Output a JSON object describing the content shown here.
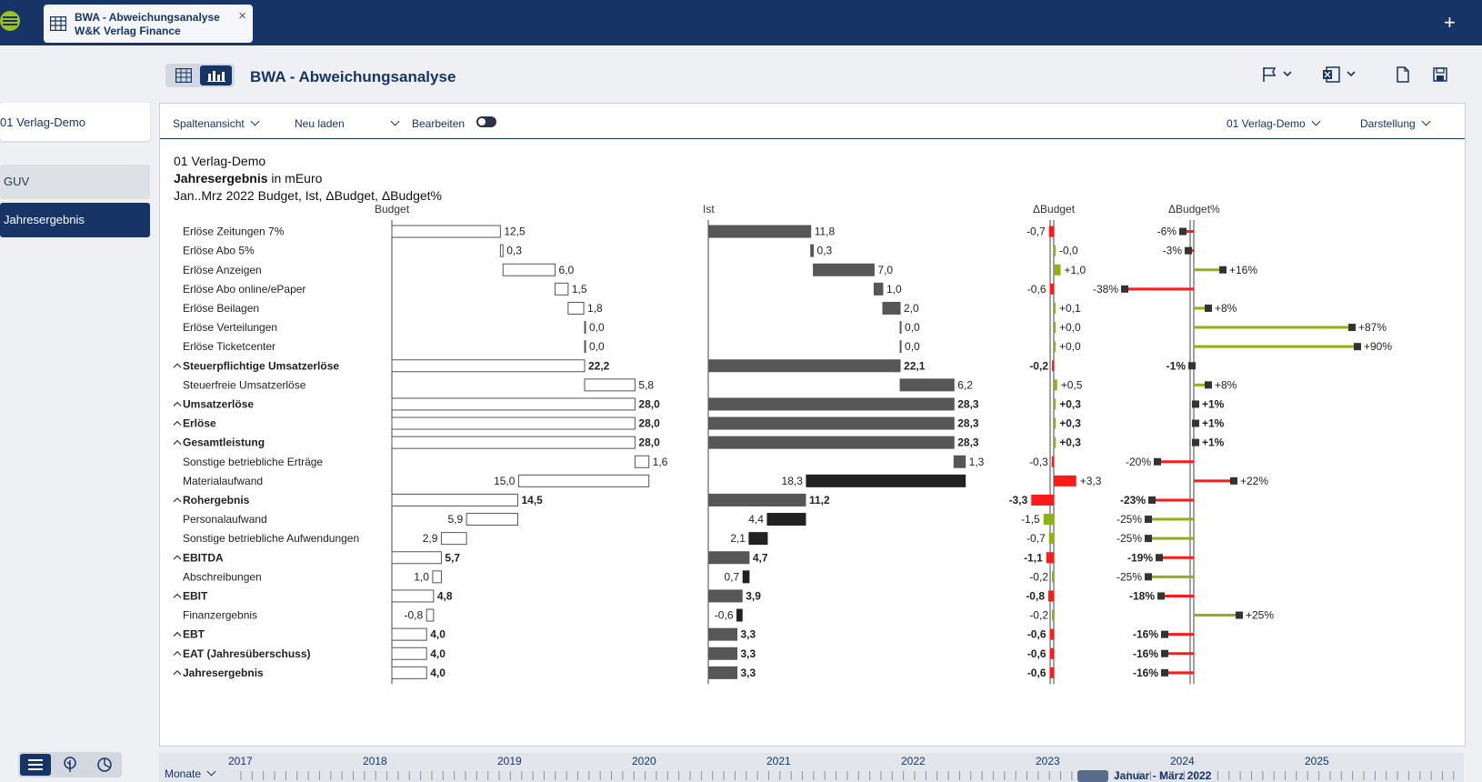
{
  "topbar": {
    "tab_line1": "BWA - Abweichungsanalyse",
    "tab_line2": "W&K Verlag Finance",
    "close_label": "×",
    "plus_label": "+"
  },
  "page": {
    "title": "BWA - Abweichungsanalyse"
  },
  "left": {
    "company": "01 Verlag-Demo",
    "nav": [
      {
        "label": "GUV"
      },
      {
        "label": "Jahresergebnis"
      }
    ]
  },
  "toolbar": {
    "columns_view": "Spaltenansicht",
    "reload": "Neu laden",
    "edit": "Bearbeiten",
    "company_select": "01 Verlag-Demo",
    "display": "Darstellung"
  },
  "report": {
    "company": "01 Verlag-Demo",
    "title_bold": "Jahresergebnis",
    "title_unit": " in mEuro",
    "subtitle": "Jan..Mrz 2022 Budget, Ist, ΔBudget, ΔBudget%"
  },
  "colors": {
    "navy": "#163566",
    "green": "#8db312",
    "red": "#ff1a1a",
    "ist_gray": "#575757",
    "ist_dark": "#222222",
    "marker": "#333333"
  },
  "chart_data": {
    "type": "bar",
    "columns": [
      "Budget",
      "Ist",
      "ΔBudget",
      "ΔBudget%"
    ],
    "rows": [
      {
        "label": "Erlöse Zeitungen 7%",
        "bold": false,
        "caret": false,
        "budget": 12.5,
        "ist": 11.8,
        "budget_text": "12,5",
        "ist_text": "11,8",
        "dabs": -0.7,
        "dabs_text": "-0,7",
        "dpct": -6,
        "dpct_text": "-6%",
        "bar_type": "delta",
        "start_b": 0,
        "start_i": 0
      },
      {
        "label": "Erlöse Abo 5%",
        "bold": false,
        "caret": false,
        "budget": 0.3,
        "ist": 0.3,
        "budget_text": "0,3",
        "ist_text": "0,3",
        "dabs": 0,
        "dabs_text": "-0,0",
        "dpct": -3,
        "dpct_text": "-3%",
        "bar_type": "delta",
        "start_b": 12.5,
        "start_i": 11.8
      },
      {
        "label": "Erlöse Anzeigen",
        "bold": false,
        "caret": false,
        "budget": 6.0,
        "ist": 7.0,
        "budget_text": "6,0",
        "ist_text": "7,0",
        "dabs": 1.0,
        "dabs_text": "+1,0",
        "dpct": 16,
        "dpct_text": "+16%",
        "bar_type": "delta",
        "start_b": 12.8,
        "start_i": 12.1
      },
      {
        "label": "Erlöse Abo online/ePaper",
        "bold": false,
        "caret": false,
        "budget": 1.5,
        "ist": 1.0,
        "budget_text": "1,5",
        "ist_text": "1,0",
        "dabs": -0.6,
        "dabs_text": "-0,6",
        "dpct": -38,
        "dpct_text": "-38%",
        "bar_type": "delta",
        "start_b": 18.8,
        "start_i": 19.1
      },
      {
        "label": "Erlöse Beilagen",
        "bold": false,
        "caret": false,
        "budget": 1.8,
        "ist": 2.0,
        "budget_text": "1,8",
        "ist_text": "2,0",
        "dabs": 0.1,
        "dabs_text": "+0,1",
        "dpct": 8,
        "dpct_text": "+8%",
        "bar_type": "delta",
        "start_b": 20.3,
        "start_i": 20.1
      },
      {
        "label": "Erlöse Verteilungen",
        "bold": false,
        "caret": false,
        "budget": 0.0,
        "ist": 0.0,
        "budget_text": "0,0",
        "ist_text": "0,0",
        "dabs": 0.0,
        "dabs_text": "+0,0",
        "dpct": 87,
        "dpct_text": "+87%",
        "bar_type": "delta",
        "start_b": 22.2,
        "start_i": 22.1
      },
      {
        "label": "Erlöse Ticketcenter",
        "bold": false,
        "caret": false,
        "budget": 0.0,
        "ist": 0.0,
        "budget_text": "0,0",
        "ist_text": "0,0",
        "dabs": 0.0,
        "dabs_text": "+0,0",
        "dpct": 90,
        "dpct_text": "+90%",
        "bar_type": "delta",
        "start_b": 22.2,
        "start_i": 22.1
      },
      {
        "label": "Steuerpflichtige Umsatzerlöse",
        "bold": true,
        "caret": true,
        "budget": 22.2,
        "ist": 22.1,
        "budget_text": "22,2",
        "ist_text": "22,1",
        "dabs": -0.2,
        "dabs_text": "-0,2",
        "dpct": -1,
        "dpct_text": "-1%",
        "bar_type": "total",
        "start_b": 0,
        "start_i": 0
      },
      {
        "label": "Steuerfreie Umsatzerlöse",
        "bold": false,
        "caret": false,
        "budget": 5.8,
        "ist": 6.2,
        "budget_text": "5,8",
        "ist_text": "6,2",
        "dabs": 0.5,
        "dabs_text": "+0,5",
        "dpct": 8,
        "dpct_text": "+8%",
        "bar_type": "delta",
        "start_b": 22.2,
        "start_i": 22.1
      },
      {
        "label": "Umsatzerlöse",
        "bold": true,
        "caret": true,
        "budget": 28.0,
        "ist": 28.3,
        "budget_text": "28,0",
        "ist_text": "28,3",
        "dabs": 0.3,
        "dabs_text": "+0,3",
        "dpct": 1,
        "dpct_text": "+1%",
        "bar_type": "total",
        "start_b": 0,
        "start_i": 0
      },
      {
        "label": "Erlöse",
        "bold": true,
        "caret": true,
        "budget": 28.0,
        "ist": 28.3,
        "budget_text": "28,0",
        "ist_text": "28,3",
        "dabs": 0.3,
        "dabs_text": "+0,3",
        "dpct": 1,
        "dpct_text": "+1%",
        "bar_type": "total",
        "start_b": 0,
        "start_i": 0
      },
      {
        "label": "Gesamtleistung",
        "bold": true,
        "caret": true,
        "budget": 28.0,
        "ist": 28.3,
        "budget_text": "28,0",
        "ist_text": "28,3",
        "dabs": 0.3,
        "dabs_text": "+0,3",
        "dpct": 1,
        "dpct_text": "+1%",
        "bar_type": "total",
        "start_b": 0,
        "start_i": 0
      },
      {
        "label": "Sonstige betriebliche Erträge",
        "bold": false,
        "caret": false,
        "budget": 1.6,
        "ist": 1.3,
        "budget_text": "1,6",
        "ist_text": "1,3",
        "dabs": -0.3,
        "dabs_text": "-0,3",
        "dpct": -20,
        "dpct_text": "-20%",
        "bar_type": "delta",
        "start_b": 28.0,
        "start_i": 28.3
      },
      {
        "label": "Materialaufwand",
        "bold": false,
        "caret": false,
        "budget": -15.0,
        "ist": -18.3,
        "budget_text": "15,0",
        "ist_text": "18,3",
        "dabs": 3.3,
        "dabs_text": "+3,3",
        "dpct": 22,
        "dpct_text": "+22%",
        "bar_type": "cost",
        "start_b": 29.6,
        "start_i": 29.6
      },
      {
        "label": "Rohergebnis",
        "bold": true,
        "caret": true,
        "budget": 14.5,
        "ist": 11.2,
        "budget_text": "14,5",
        "ist_text": "11,2",
        "dabs": -3.3,
        "dabs_text": "-3,3",
        "dpct": -23,
        "dpct_text": "-23%",
        "bar_type": "total",
        "start_b": 0,
        "start_i": 0
      },
      {
        "label": "Personalaufwand",
        "bold": false,
        "caret": false,
        "budget": -5.9,
        "ist": -4.4,
        "budget_text": "5,9",
        "ist_text": "4,4",
        "dabs": -1.5,
        "dabs_text": "-1,5",
        "dpct": -25,
        "dpct_text": "-25%",
        "bar_type": "cost",
        "start_b": 14.5,
        "start_i": 11.2
      },
      {
        "label": "Sonstige betriebliche Aufwendungen",
        "bold": false,
        "caret": false,
        "budget": -2.9,
        "ist": -2.1,
        "budget_text": "2,9",
        "ist_text": "2,1",
        "dabs": -0.7,
        "dabs_text": "-0,7",
        "dpct": -25,
        "dpct_text": "-25%",
        "bar_type": "cost",
        "start_b": 8.6,
        "start_i": 6.8
      },
      {
        "label": "EBITDA",
        "bold": true,
        "caret": true,
        "budget": 5.7,
        "ist": 4.7,
        "budget_text": "5,7",
        "ist_text": "4,7",
        "dabs": -1.1,
        "dabs_text": "-1,1",
        "dpct": -19,
        "dpct_text": "-19%",
        "bar_type": "total",
        "start_b": 0,
        "start_i": 0
      },
      {
        "label": "Abschreibungen",
        "bold": false,
        "caret": false,
        "budget": -1.0,
        "ist": -0.7,
        "budget_text": "1,0",
        "ist_text": "0,7",
        "dabs": -0.2,
        "dabs_text": "-0,2",
        "dpct": -25,
        "dpct_text": "-25%",
        "bar_type": "cost",
        "start_b": 5.7,
        "start_i": 4.7
      },
      {
        "label": "EBIT",
        "bold": true,
        "caret": true,
        "budget": 4.8,
        "ist": 3.9,
        "budget_text": "4,8",
        "ist_text": "3,9",
        "dabs": -0.8,
        "dabs_text": "-0,8",
        "dpct": -18,
        "dpct_text": "-18%",
        "bar_type": "total",
        "start_b": 0,
        "start_i": 0
      },
      {
        "label": "Finanzergebnis",
        "bold": false,
        "caret": false,
        "budget": -0.8,
        "ist": -0.6,
        "budget_text": "-0,8",
        "ist_text": "-0,6",
        "dabs": -0.2,
        "dabs_text": "-0,2",
        "dpct": 25,
        "dpct_text": "+25%",
        "bar_type": "cost",
        "start_b": 4.8,
        "start_i": 3.9
      },
      {
        "label": "EBT",
        "bold": true,
        "caret": true,
        "budget": 4.0,
        "ist": 3.3,
        "budget_text": "4,0",
        "ist_text": "3,3",
        "dabs": -0.6,
        "dabs_text": "-0,6",
        "dpct": -16,
        "dpct_text": "-16%",
        "bar_type": "total",
        "start_b": 0,
        "start_i": 0
      },
      {
        "label": "EAT (Jahresüberschuss)",
        "bold": true,
        "caret": true,
        "budget": 4.0,
        "ist": 3.3,
        "budget_text": "4,0",
        "ist_text": "3,3",
        "dabs": -0.6,
        "dabs_text": "-0,6",
        "dpct": -16,
        "dpct_text": "-16%",
        "bar_type": "total",
        "start_b": 0,
        "start_i": 0
      },
      {
        "label": "Jahresergebnis",
        "bold": true,
        "caret": true,
        "budget": 4.0,
        "ist": 3.3,
        "budget_text": "4,0",
        "ist_text": "3,3",
        "dabs": -0.6,
        "dabs_text": "-0,6",
        "dpct": -16,
        "dpct_text": "-16%",
        "bar_type": "total",
        "start_b": 0,
        "start_i": 0
      }
    ]
  },
  "timeline": {
    "granularity": "Monate",
    "years": [
      "2017",
      "2018",
      "2019",
      "2020",
      "2021",
      "2022",
      "2023",
      "2024",
      "2025"
    ],
    "range_label": "Januar - März 2022"
  }
}
